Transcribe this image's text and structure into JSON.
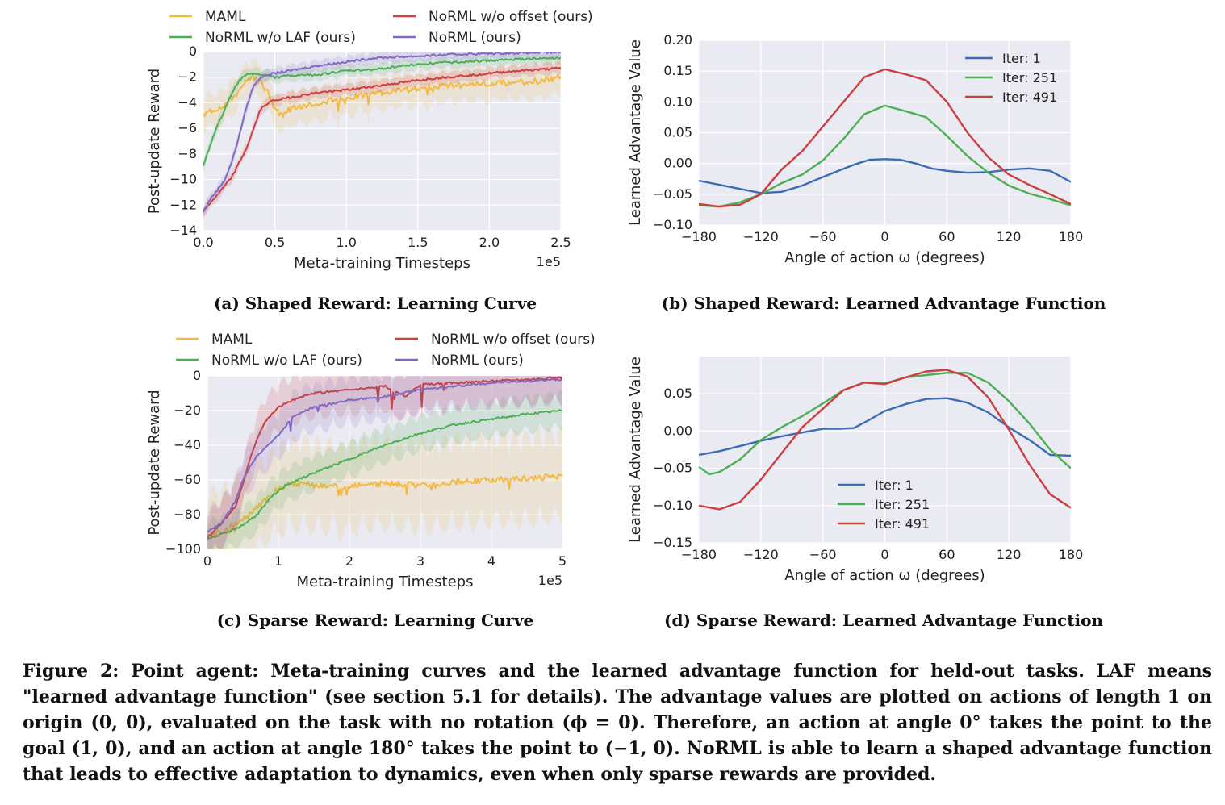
{
  "caption": {
    "text": "Figure 2: Point agent: Meta-training curves and the learned advantage function for held-out tasks. LAF means \"learned advantage function\" (see section 5.1 for details). The advantage values are plotted on actions of length 1 on origin (0, 0), evaluated on the task with no rotation (ϕ = 0). Therefore, an action at angle 0° takes the point to the goal (1, 0), and an action at angle 180° takes the point to (−1, 0). NoRML is able to learn a shaped advantage function that leads to effective adaptation to dynamics, even when only sparse rewards are provided."
  },
  "colors": {
    "maml": "#f4b942",
    "laf": "#4daf55",
    "offset": "#cc3f3f",
    "normal": "#8269c2",
    "iter1": "#3d6cb5",
    "iter251": "#4daf55",
    "iter491": "#cc3f3f",
    "plot_bg": "#eaeaf2",
    "grid": "#ffffff"
  },
  "chart_data": [
    {
      "id": "a",
      "type": "line",
      "subcaption": "(a) Shaped Reward: Learning Curve",
      "xlabel": "Meta-training Timesteps",
      "ylabel": "Post-update Reward",
      "x_multiplier": "1e5",
      "xlim": [
        0,
        2.5
      ],
      "ylim": [
        -14,
        0
      ],
      "xticks": [
        0,
        0.5,
        1.0,
        1.5,
        2.0,
        2.5
      ],
      "xtick_labels": [
        "0.0",
        "0.5",
        "1.0",
        "1.5",
        "2.0",
        "2.5"
      ],
      "yticks": [
        0,
        -2,
        -4,
        -6,
        -8,
        -10,
        -12,
        -14
      ],
      "ytick_labels": [
        "0",
        "−2",
        "−4",
        "−6",
        "−8",
        "−10",
        "−12",
        "−14"
      ],
      "legend": {
        "position": "top",
        "columns": 2
      },
      "series": [
        {
          "name": "MAML",
          "color_key": "maml",
          "band": 1.2,
          "x": [
            0,
            0.05,
            0.1,
            0.15,
            0.2,
            0.25,
            0.3,
            0.35,
            0.4,
            0.45,
            0.5,
            0.55,
            0.6,
            0.7,
            0.8,
            0.9,
            1.0,
            1.2,
            1.4,
            1.6,
            1.8,
            2.0,
            2.2,
            2.4,
            2.5
          ],
          "y": [
            -5,
            -4.6,
            -4.4,
            -4.1,
            -3.6,
            -3.1,
            -2.4,
            -2.1,
            -2.3,
            -3.2,
            -4.5,
            -5.0,
            -4.5,
            -4.2,
            -4.0,
            -3.8,
            -3.6,
            -3.3,
            -3.0,
            -2.8,
            -2.6,
            -2.5,
            -2.4,
            -2.2,
            -2.0
          ]
        },
        {
          "name": "NoRML w/o LAF (ours)",
          "color_key": "laf",
          "band": 0.4,
          "x": [
            0,
            0.05,
            0.1,
            0.15,
            0.2,
            0.25,
            0.3,
            0.35,
            0.4,
            0.5,
            0.6,
            0.8,
            1.0,
            1.2,
            1.4,
            1.6,
            1.8,
            2.0,
            2.2,
            2.5
          ],
          "y": [
            -9,
            -7.2,
            -5.8,
            -4.5,
            -3.2,
            -2.3,
            -1.8,
            -1.7,
            -1.8,
            -2.0,
            -1.9,
            -1.8,
            -1.5,
            -1.4,
            -1.1,
            -0.9,
            -0.8,
            -0.7,
            -0.6,
            -0.5
          ]
        },
        {
          "name": "NoRML w/o offset (ours)",
          "color_key": "offset",
          "band": 0.4,
          "x": [
            0,
            0.05,
            0.1,
            0.15,
            0.2,
            0.25,
            0.3,
            0.35,
            0.4,
            0.45,
            0.5,
            0.6,
            0.7,
            0.8,
            1.0,
            1.2,
            1.4,
            1.6,
            1.8,
            2.0,
            2.2,
            2.5
          ],
          "y": [
            -12.5,
            -11.8,
            -11.2,
            -10.5,
            -9.8,
            -8.7,
            -7.6,
            -6.1,
            -4.5,
            -4.0,
            -3.8,
            -3.6,
            -3.4,
            -3.2,
            -3.0,
            -2.7,
            -2.4,
            -2.1,
            -1.9,
            -1.7,
            -1.5,
            -1.3
          ]
        },
        {
          "name": "NoRML (ours)",
          "color_key": "normal",
          "band": 0.4,
          "x": [
            0,
            0.05,
            0.1,
            0.15,
            0.2,
            0.25,
            0.3,
            0.35,
            0.4,
            0.45,
            0.5,
            0.6,
            0.8,
            1.0,
            1.2,
            1.4,
            1.6,
            1.8,
            2.0,
            2.2,
            2.5
          ],
          "y": [
            -12.5,
            -11.5,
            -10.8,
            -10.0,
            -8.6,
            -6.6,
            -4.4,
            -2.7,
            -2.0,
            -1.8,
            -1.7,
            -1.5,
            -1.1,
            -0.8,
            -0.5,
            -0.4,
            -0.3,
            -0.2,
            -0.15,
            -0.1,
            -0.05
          ]
        }
      ]
    },
    {
      "id": "b",
      "type": "line",
      "subcaption": "(b) Shaped Reward: Learned Advantage Function",
      "xlabel": "Angle of action ω (degrees)",
      "ylabel": "Learned Advantage Value",
      "xlim": [
        -180,
        180
      ],
      "ylim": [
        -0.1,
        0.2
      ],
      "xticks": [
        -180,
        -120,
        -60,
        0,
        60,
        120,
        180
      ],
      "xtick_labels": [
        "−180",
        "−120",
        "−60",
        "0",
        "60",
        "120",
        "180"
      ],
      "yticks": [
        0.2,
        0.15,
        0.1,
        0.05,
        0.0,
        -0.05,
        -0.1
      ],
      "ytick_labels": [
        "0.20",
        "0.15",
        "0.10",
        "0.05",
        "0.00",
        "−0.05",
        "−0.10"
      ],
      "legend": {
        "position": "top-right"
      },
      "series": [
        {
          "name": "Iter: 1",
          "color_key": "iter1",
          "x": [
            -180,
            -150,
            -120,
            -100,
            -80,
            -60,
            -45,
            -30,
            -15,
            0,
            15,
            30,
            45,
            60,
            80,
            100,
            120,
            140,
            160,
            180
          ],
          "y": [
            -0.028,
            -0.038,
            -0.048,
            -0.046,
            -0.036,
            -0.022,
            -0.012,
            -0.002,
            0.006,
            0.007,
            0.006,
            0.0,
            -0.008,
            -0.012,
            -0.015,
            -0.014,
            -0.01,
            -0.008,
            -0.012,
            -0.03
          ]
        },
        {
          "name": "Iter: 251",
          "color_key": "iter251",
          "x": [
            -180,
            -160,
            -140,
            -120,
            -100,
            -80,
            -60,
            -40,
            -20,
            0,
            20,
            40,
            60,
            80,
            100,
            120,
            140,
            160,
            180
          ],
          "y": [
            -0.068,
            -0.07,
            -0.063,
            -0.05,
            -0.032,
            -0.018,
            0.005,
            0.04,
            0.08,
            0.094,
            0.085,
            0.075,
            0.045,
            0.012,
            -0.015,
            -0.036,
            -0.049,
            -0.058,
            -0.068
          ]
        },
        {
          "name": "Iter: 491",
          "color_key": "iter491",
          "x": [
            -180,
            -160,
            -140,
            -120,
            -100,
            -80,
            -60,
            -40,
            -20,
            0,
            20,
            40,
            60,
            80,
            100,
            120,
            140,
            160,
            180
          ],
          "y": [
            -0.066,
            -0.07,
            -0.067,
            -0.05,
            -0.01,
            0.02,
            0.06,
            0.1,
            0.14,
            0.153,
            0.145,
            0.135,
            0.1,
            0.05,
            0.01,
            -0.018,
            -0.035,
            -0.05,
            -0.066
          ]
        }
      ]
    },
    {
      "id": "c",
      "type": "line",
      "subcaption": "(c) Sparse Reward: Learning Curve",
      "xlabel": "Meta-training Timesteps",
      "ylabel": "Post-update Reward",
      "x_multiplier": "1e5",
      "xlim": [
        0,
        5
      ],
      "ylim": [
        -100,
        0
      ],
      "xticks": [
        0,
        1,
        2,
        3,
        4,
        5
      ],
      "xtick_labels": [
        "0",
        "1",
        "2",
        "3",
        "4",
        "5"
      ],
      "yticks": [
        0,
        -20,
        -40,
        -60,
        -80,
        -100
      ],
      "ytick_labels": [
        "0",
        "−20",
        "−40",
        "−60",
        "−80",
        "−100"
      ],
      "legend": {
        "position": "top",
        "columns": 2
      },
      "series": [
        {
          "name": "MAML",
          "color_key": "maml",
          "band": 22,
          "x": [
            0,
            0.3,
            0.6,
            0.8,
            1.0,
            1.2,
            1.5,
            2.0,
            2.5,
            3.0,
            3.5,
            4.0,
            4.5,
            5.0
          ],
          "y": [
            -93,
            -88,
            -80,
            -72,
            -65,
            -62,
            -63,
            -64,
            -62,
            -63,
            -61,
            -60,
            -59,
            -58
          ]
        },
        {
          "name": "NoRML w/o LAF (ours)",
          "color_key": "laf",
          "band": 9,
          "x": [
            0,
            0.3,
            0.5,
            0.7,
            0.9,
            1.1,
            1.5,
            2.0,
            2.5,
            3.0,
            3.5,
            4.0,
            4.5,
            5.0
          ],
          "y": [
            -94,
            -90,
            -86,
            -80,
            -70,
            -63,
            -56,
            -48,
            -40,
            -33,
            -28,
            -25,
            -22,
            -20
          ]
        },
        {
          "name": "NoRML w/o offset (ours)",
          "color_key": "offset",
          "band": 12,
          "x": [
            0,
            0.2,
            0.4,
            0.5,
            0.6,
            0.7,
            0.8,
            1.0,
            1.2,
            1.5,
            2.0,
            2.5,
            2.8,
            3.0,
            3.5,
            4.0,
            4.5,
            5.0
          ],
          "y": [
            -93,
            -85,
            -75,
            -62,
            -48,
            -36,
            -27,
            -18,
            -14,
            -10,
            -8,
            -6,
            -12,
            -5,
            -4,
            -3,
            -2,
            -1
          ]
        },
        {
          "name": "NoRML (ours)",
          "color_key": "normal",
          "band": 12,
          "x": [
            0,
            0.2,
            0.4,
            0.5,
            0.6,
            0.7,
            0.8,
            0.9,
            1.0,
            1.2,
            1.5,
            2.0,
            2.5,
            3.0,
            3.5,
            4.0,
            4.5,
            5.0
          ],
          "y": [
            -90,
            -85,
            -72,
            -60,
            -52,
            -46,
            -42,
            -38,
            -34,
            -24,
            -18,
            -14,
            -12,
            -8,
            -6,
            -4,
            -3,
            -2
          ]
        }
      ]
    },
    {
      "id": "d",
      "type": "line",
      "subcaption": "(d) Sparse Reward: Learned Advantage Function",
      "xlabel": "Angle of action ω (degrees)",
      "ylabel": "Learned Advantage Value",
      "xlim": [
        -180,
        180
      ],
      "ylim": [
        -0.15,
        0.1
      ],
      "xticks": [
        -180,
        -120,
        -60,
        0,
        60,
        120,
        180
      ],
      "xtick_labels": [
        "−180",
        "−120",
        "−60",
        "0",
        "60",
        "120",
        "180"
      ],
      "yticks": [
        0.05,
        0.0,
        -0.05,
        -0.1,
        -0.15
      ],
      "ytick_labels": [
        "0.05",
        "0.00",
        "−0.05",
        "−0.10",
        "−0.15"
      ],
      "legend": {
        "position": "lower-center"
      },
      "series": [
        {
          "name": "Iter: 1",
          "color_key": "iter1",
          "x": [
            -180,
            -160,
            -140,
            -120,
            -100,
            -80,
            -60,
            -45,
            -30,
            -15,
            0,
            20,
            40,
            60,
            80,
            100,
            120,
            140,
            160,
            180
          ],
          "y": [
            -0.032,
            -0.027,
            -0.02,
            -0.013,
            -0.007,
            -0.002,
            0.003,
            0.003,
            0.004,
            0.015,
            0.027,
            0.036,
            0.043,
            0.044,
            0.038,
            0.025,
            0.005,
            -0.012,
            -0.032,
            -0.033
          ]
        },
        {
          "name": "Iter: 251",
          "color_key": "iter251",
          "x": [
            -180,
            -170,
            -160,
            -140,
            -120,
            -100,
            -80,
            -60,
            -40,
            -20,
            0,
            20,
            40,
            60,
            80,
            100,
            120,
            140,
            160,
            180
          ],
          "y": [
            -0.048,
            -0.058,
            -0.055,
            -0.038,
            -0.012,
            0.005,
            0.02,
            0.037,
            0.055,
            0.065,
            0.064,
            0.072,
            0.075,
            0.078,
            0.078,
            0.065,
            0.04,
            0.01,
            -0.025,
            -0.05
          ]
        },
        {
          "name": "Iter: 491",
          "color_key": "iter491",
          "x": [
            -180,
            -160,
            -140,
            -120,
            -100,
            -80,
            -60,
            -40,
            -20,
            0,
            20,
            40,
            60,
            80,
            100,
            120,
            140,
            160,
            180
          ],
          "y": [
            -0.1,
            -0.105,
            -0.095,
            -0.065,
            -0.03,
            0.005,
            0.03,
            0.055,
            0.065,
            0.063,
            0.072,
            0.08,
            0.082,
            0.073,
            0.045,
            0.002,
            -0.045,
            -0.085,
            -0.103
          ]
        }
      ]
    }
  ]
}
